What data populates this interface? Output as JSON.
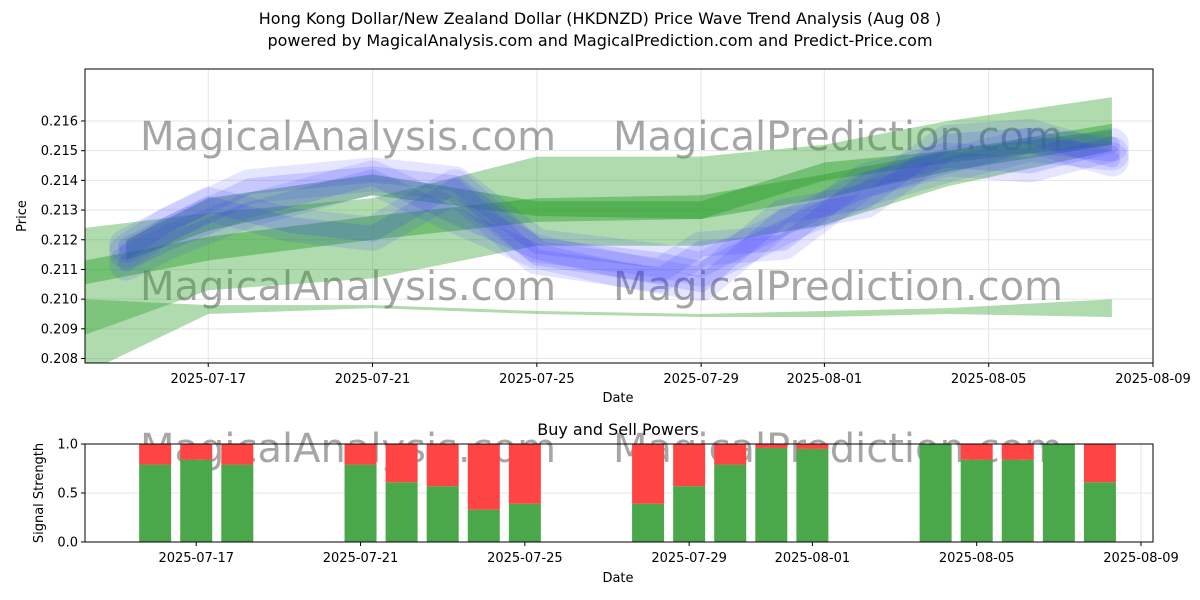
{
  "header": {
    "title": "Hong Kong Dollar/New Zealand Dollar (HKDNZD) Price Wave Trend Analysis (Aug 08 )",
    "subtitle": "powered by MagicalAnalysis.com and MagicalPrediction.com and Predict-Price.com"
  },
  "watermarks": [
    "MagicalAnalysis.com",
    "MagicalPrediction.com"
  ],
  "colors": {
    "wave_green": "#2ca02c",
    "wave_blue": "#3333ff",
    "buy": "#4aa84a",
    "sell": "#ff4444",
    "grid": "#e5e5e5"
  },
  "chart_data": [
    {
      "type": "area",
      "xlabel": "Date",
      "ylabel": "Price",
      "xlim": [
        "2025-07-14",
        "2025-08-09"
      ],
      "ylim": [
        0.20785,
        0.21775
      ],
      "x_ticks": [
        "2025-07-17",
        "2025-07-21",
        "2025-07-25",
        "2025-07-29",
        "2025-08-01",
        "2025-08-05",
        "2025-08-09"
      ],
      "y_ticks": [
        0.208,
        0.209,
        0.21,
        0.211,
        0.212,
        0.213,
        0.214,
        0.215,
        0.216
      ],
      "grid": true,
      "green_bands": [
        {
          "x": [
            "2025-07-14",
            "2025-07-17",
            "2025-07-21",
            "2025-07-25",
            "2025-07-29",
            "2025-08-01",
            "2025-08-04",
            "2025-08-08"
          ],
          "low": [
            0.2075,
            0.2095,
            0.2097,
            0.2095,
            0.2094,
            0.2094,
            0.2095,
            0.2094
          ],
          "high": [
            0.21,
            0.2098,
            0.2098,
            0.2096,
            0.2095,
            0.2096,
            0.2097,
            0.21
          ]
        },
        {
          "x": [
            "2025-07-14",
            "2025-07-17",
            "2025-07-21",
            "2025-07-25",
            "2025-07-29",
            "2025-08-01",
            "2025-08-04",
            "2025-08-08"
          ],
          "low": [
            0.2088,
            0.2103,
            0.2107,
            0.2118,
            0.2118,
            0.2125,
            0.2138,
            0.215
          ],
          "high": [
            0.2124,
            0.2129,
            0.2134,
            0.2148,
            0.2148,
            0.2152,
            0.216,
            0.2168
          ]
        },
        {
          "x": [
            "2025-07-14",
            "2025-07-17",
            "2025-07-21",
            "2025-07-25",
            "2025-07-29",
            "2025-08-01",
            "2025-08-04",
            "2025-08-08"
          ],
          "low": [
            0.2105,
            0.2113,
            0.212,
            0.2126,
            0.2127,
            0.2134,
            0.2143,
            0.2152
          ],
          "high": [
            0.2113,
            0.2121,
            0.2128,
            0.2134,
            0.2135,
            0.2142,
            0.215,
            0.2159
          ]
        },
        {
          "x": [
            "2025-07-15",
            "2025-07-17",
            "2025-07-21",
            "2025-07-25",
            "2025-07-29",
            "2025-08-01",
            "2025-08-04",
            "2025-08-08"
          ],
          "low": [
            0.2113,
            0.2123,
            0.2135,
            0.2128,
            0.2127,
            0.214,
            0.2146,
            0.2152
          ],
          "high": [
            0.212,
            0.2134,
            0.2142,
            0.2133,
            0.2133,
            0.2146,
            0.215,
            0.2157
          ]
        }
      ],
      "blue_waves": [
        {
          "x": [
            "2025-07-15",
            "2025-07-16",
            "2025-07-18",
            "2025-07-21",
            "2025-07-23",
            "2025-07-25",
            "2025-07-28",
            "2025-07-29",
            "2025-07-31",
            "2025-08-02",
            "2025-08-04",
            "2025-08-06",
            "2025-08-08"
          ],
          "y": [
            0.2116,
            0.2125,
            0.2138,
            0.2142,
            0.2139,
            0.2118,
            0.2113,
            0.211,
            0.2124,
            0.2137,
            0.2145,
            0.2152,
            0.2149
          ]
        },
        {
          "x": [
            "2025-07-15",
            "2025-07-17",
            "2025-07-19",
            "2025-07-21",
            "2025-07-23",
            "2025-07-25",
            "2025-07-28",
            "2025-07-29",
            "2025-07-31",
            "2025-08-02",
            "2025-08-04",
            "2025-08-06",
            "2025-08-08"
          ],
          "y": [
            0.2118,
            0.2132,
            0.2125,
            0.2122,
            0.2138,
            0.2114,
            0.2108,
            0.2117,
            0.2119,
            0.214,
            0.2147,
            0.2145,
            0.2152
          ]
        },
        {
          "x": [
            "2025-07-15",
            "2025-07-16",
            "2025-07-18",
            "2025-07-21",
            "2025-07-23",
            "2025-07-25",
            "2025-07-27",
            "2025-07-29",
            "2025-07-31",
            "2025-08-02",
            "2025-08-04",
            "2025-08-06",
            "2025-08-08"
          ],
          "y": [
            0.2112,
            0.2119,
            0.213,
            0.2141,
            0.2128,
            0.2116,
            0.211,
            0.2105,
            0.2128,
            0.2133,
            0.2153,
            0.2155,
            0.2147
          ]
        }
      ]
    },
    {
      "type": "bar",
      "title": "Buy and Sell Powers",
      "xlabel": "Date",
      "ylabel": "Signal Strength",
      "ylim": [
        0.0,
        1.0
      ],
      "y_ticks": [
        "0.0",
        "0.5",
        "1.0"
      ],
      "x_ticks": [
        "2025-07-17",
        "2025-07-21",
        "2025-07-25",
        "2025-07-29",
        "2025-08-01",
        "2025-08-05",
        "2025-08-09"
      ],
      "grid": true,
      "categories": [
        "2025-07-16",
        "2025-07-17",
        "2025-07-18",
        "2025-07-21",
        "2025-07-22",
        "2025-07-23",
        "2025-07-24",
        "2025-07-25",
        "2025-07-28",
        "2025-07-29",
        "2025-07-30",
        "2025-07-31",
        "2025-08-01",
        "2025-08-04",
        "2025-08-05",
        "2025-08-06",
        "2025-08-07",
        "2025-08-08"
      ],
      "series": [
        {
          "values": [
            0.79,
            0.84,
            0.79,
            0.79,
            0.61,
            0.57,
            0.33,
            0.39,
            0.39,
            0.57,
            0.79,
            0.96,
            0.95,
            1.0,
            0.84,
            0.84,
            1.0,
            0.61
          ]
        },
        {
          "values": [
            0.21,
            0.16,
            0.21,
            0.21,
            0.39,
            0.43,
            0.67,
            0.61,
            0.61,
            0.43,
            0.21,
            0.04,
            0.05,
            0.0,
            0.16,
            0.16,
            0.0,
            0.39
          ]
        }
      ]
    }
  ]
}
